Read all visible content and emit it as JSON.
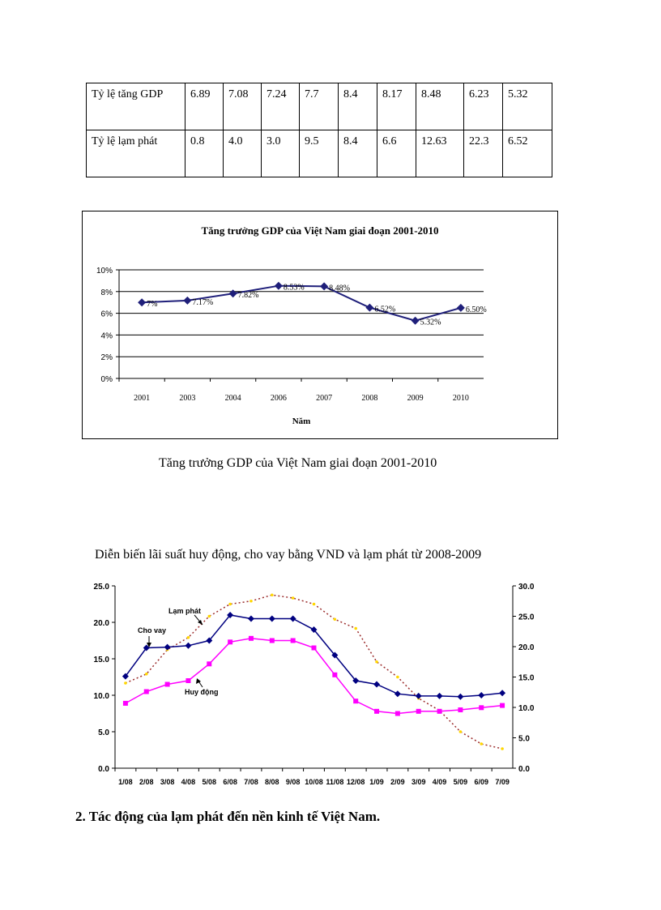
{
  "table": {
    "rows": [
      {
        "label": "Tỷ lệ tăng GDP",
        "values": [
          "6.89",
          "7.08",
          "7.24",
          "7.7",
          "8.4",
          "8.17",
          "8.48",
          "6.23",
          "5.32"
        ]
      },
      {
        "label": "Tỷ lệ lạm phát",
        "values": [
          "0.8",
          "4.0",
          "3.0",
          "9.5",
          "8.4",
          "6.6",
          "12.63",
          "22.3",
          "6.52"
        ]
      }
    ]
  },
  "caption1": "Tăng trưởng GDP của Việt Nam giai  đoạn 2001-2010",
  "caption2": "Diễn biến lãi  suất huy động, cho vay bằng VND và lạm phát từ 2008-2009",
  "heading": "2. Tác động của lạm phát đến nền kinh tế Việt Nam.",
  "colors": {
    "gdp_line": "#1F1F7A",
    "cho_vay": "#000080",
    "huy_dong": "#FF00FF",
    "lam_phat": "#9B2B2B",
    "lam_phat_markers": "#FFD700"
  },
  "chart_data": [
    {
      "type": "line",
      "title": "Tăng trưởng GDP của Việt Nam giai đoạn 2001-2010",
      "xlabel": "Năm",
      "ylabel": "",
      "categories": [
        "2001",
        "2003",
        "2004",
        "2006",
        "2007",
        "2008",
        "2009",
        "2010"
      ],
      "values": [
        7,
        7.17,
        7.82,
        8.53,
        8.48,
        6.52,
        5.32,
        6.5
      ],
      "data_labels": [
        "7%",
        "7.17%",
        "7.82%",
        "8.53%",
        "8.48%",
        "6.52%",
        "5.32%",
        "6.50%"
      ],
      "ylim": [
        0,
        10
      ],
      "yticks": [
        0,
        2,
        4,
        6,
        8,
        10
      ],
      "ytick_labels": [
        "0%",
        "2%",
        "4%",
        "6%",
        "8%",
        "10%"
      ],
      "grid": true
    },
    {
      "type": "line",
      "title": "",
      "categories": [
        "1/08",
        "2/08",
        "3/08",
        "4/08",
        "5/08",
        "6/08",
        "7/08",
        "8/08",
        "9/08",
        "10/08",
        "11/08",
        "12/08",
        "1/09",
        "2/09",
        "3/09",
        "4/09",
        "5/09",
        "6/09",
        "7/09"
      ],
      "series": [
        {
          "name": "Cho vay",
          "axis": "left",
          "values": [
            12.6,
            16.5,
            16.6,
            16.8,
            17.5,
            21.0,
            20.5,
            20.5,
            20.5,
            19.0,
            15.5,
            12.0,
            11.5,
            10.2,
            9.9,
            9.9,
            9.8,
            10.0,
            10.3
          ]
        },
        {
          "name": "Huy động",
          "axis": "left",
          "values": [
            8.9,
            10.5,
            11.5,
            12.0,
            14.3,
            17.3,
            17.8,
            17.5,
            17.5,
            16.5,
            12.8,
            9.2,
            7.8,
            7.5,
            7.8,
            7.8,
            8.0,
            8.3,
            8.6
          ]
        },
        {
          "name": "Lạm phát",
          "axis": "right",
          "values": [
            14.0,
            15.5,
            19.5,
            21.5,
            25.0,
            27.0,
            27.5,
            28.5,
            28.0,
            27.0,
            24.5,
            23.0,
            17.5,
            15.0,
            11.5,
            9.5,
            6.0,
            4.0,
            3.2
          ]
        }
      ],
      "ylim_left": [
        0,
        25
      ],
      "yticks_left": [
        "0.0",
        "5.0",
        "10.0",
        "15.0",
        "20.0",
        "25.0"
      ],
      "ylim_right": [
        0,
        30
      ],
      "yticks_right": [
        "0.0",
        "5.0",
        "10.0",
        "15.0",
        "20.0",
        "25.0",
        "30.0"
      ],
      "annotations": [
        "Lạm phát",
        "Cho vay",
        "Huy động"
      ],
      "grid": false
    }
  ]
}
